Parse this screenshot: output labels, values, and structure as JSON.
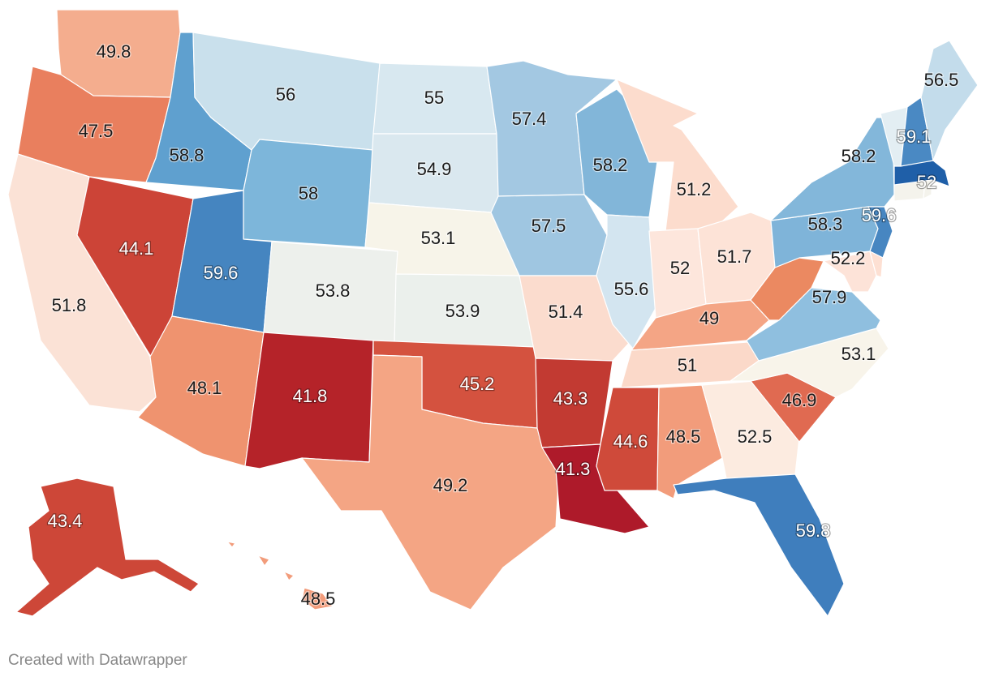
{
  "map": {
    "states": [
      {
        "id": "WA",
        "value": "49.8",
        "color": "#f4ad8e"
      },
      {
        "id": "OR",
        "value": "47.5",
        "color": "#e97f5e"
      },
      {
        "id": "CA",
        "value": "51.8",
        "color": "#fbe2d6"
      },
      {
        "id": "NV",
        "value": "44.1",
        "color": "#cc4437"
      },
      {
        "id": "ID",
        "value": "58.8",
        "color": "#5fa0cf"
      },
      {
        "id": "MT",
        "value": "56",
        "color": "#c9e0ec"
      },
      {
        "id": "WY",
        "value": "58",
        "color": "#7db6da"
      },
      {
        "id": "UT",
        "value": "59.6",
        "color": "#4585c0"
      },
      {
        "id": "AZ",
        "value": "48.1",
        "color": "#ef936f"
      },
      {
        "id": "CO",
        "value": "53.8",
        "color": "#edf0ec"
      },
      {
        "id": "NM",
        "value": "41.8",
        "color": "#b52329"
      },
      {
        "id": "ND",
        "value": "55",
        "color": "#d8e8f0"
      },
      {
        "id": "SD",
        "value": "54.9",
        "color": "#dae8ef"
      },
      {
        "id": "NE",
        "value": "53.1",
        "color": "#f7f4e9"
      },
      {
        "id": "KS",
        "value": "53.9",
        "color": "#ebf0ec"
      },
      {
        "id": "OK",
        "value": "45.2",
        "color": "#d4523f"
      },
      {
        "id": "TX",
        "value": "49.2",
        "color": "#f4a584"
      },
      {
        "id": "MN",
        "value": "57.4",
        "color": "#a3c8e2"
      },
      {
        "id": "IA",
        "value": "57.5",
        "color": "#9fc6e1"
      },
      {
        "id": "MO",
        "value": "51.4",
        "color": "#fbdcce"
      },
      {
        "id": "AR",
        "value": "43.3",
        "color": "#c23a32"
      },
      {
        "id": "LA",
        "value": "41.3",
        "color": "#ae1a2a"
      },
      {
        "id": "WI",
        "value": "58.2",
        "color": "#82b6d9"
      },
      {
        "id": "IL",
        "value": "55.6",
        "color": "#d3e5f0"
      },
      {
        "id": "MI",
        "value": "51.2",
        "color": "#fcdccd"
      },
      {
        "id": "IN",
        "value": "52",
        "color": "#fde6dc"
      },
      {
        "id": "OH",
        "value": "51.7",
        "color": "#fde3d7"
      },
      {
        "id": "KY",
        "value": "49",
        "color": "#f4a585"
      },
      {
        "id": "TN",
        "value": "51",
        "color": "#fbd9c9"
      },
      {
        "id": "MS",
        "value": "44.6",
        "color": "#cf4a3a"
      },
      {
        "id": "AL",
        "value": "48.5",
        "color": "#f29c7b"
      },
      {
        "id": "GA",
        "value": "52.5",
        "color": "#fcebe0"
      },
      {
        "id": "FL",
        "value": "59.8",
        "color": "#3f7ebd"
      },
      {
        "id": "SC",
        "value": "46.9",
        "color": "#e06a51"
      },
      {
        "id": "NC",
        "value": "53.1",
        "color": "#f8f4ea"
      },
      {
        "id": "VA",
        "value": "57.9",
        "color": "#8fbfdf"
      },
      {
        "id": "WV",
        "value": "",
        "color": "#eb8961"
      },
      {
        "id": "PA",
        "value": "58.3",
        "color": "#7fb4d9"
      },
      {
        "id": "NY",
        "value": "58.2",
        "color": "#83b7da"
      },
      {
        "id": "NJ",
        "value": "59.6",
        "color": "#4786c1"
      },
      {
        "id": "MD",
        "value": "52.2",
        "color": "#fde3d8"
      },
      {
        "id": "DE",
        "value": "",
        "color": "#fde0d3"
      },
      {
        "id": "CT",
        "value": "",
        "color": "#f4f3ec"
      },
      {
        "id": "RI",
        "value": "",
        "color": "#f4f3ec"
      },
      {
        "id": "MA",
        "value": "52",
        "color": "#1f5fa8"
      },
      {
        "id": "VT",
        "value": "",
        "color": "#e3eef3"
      },
      {
        "id": "NH",
        "value": "59.1",
        "color": "#4a89c3"
      },
      {
        "id": "ME",
        "value": "56.5",
        "color": "#c3dceb"
      },
      {
        "id": "AK",
        "value": "43.4",
        "color": "#cd4738"
      },
      {
        "id": "HI",
        "value": "48.5",
        "color": "#f29c7b"
      }
    ]
  },
  "footer": {
    "credit": "Created with Datawrapper"
  }
}
